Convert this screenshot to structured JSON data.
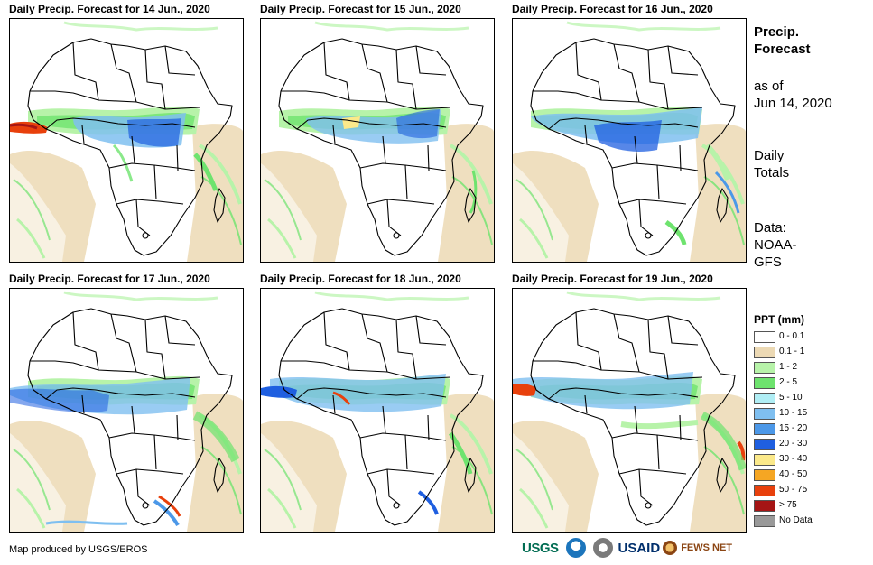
{
  "panels": [
    {
      "title": "Daily Precip. Forecast for 14 Jun., 2020"
    },
    {
      "title": "Daily Precip. Forecast for 15 Jun., 2020"
    },
    {
      "title": "Daily Precip. Forecast for 16 Jun., 2020"
    },
    {
      "title": "Daily Precip. Forecast for 17 Jun., 2020"
    },
    {
      "title": "Daily Precip. Forecast for 18 Jun., 2020"
    },
    {
      "title": "Daily Precip. Forecast for 19 Jun., 2020"
    }
  ],
  "side_info": {
    "heading_line1": "Precip.",
    "heading_line2": "Forecast",
    "asof_line1": "as of",
    "asof_line2": "Jun 14, 2020",
    "totals_line1": "Daily",
    "totals_line2": "Totals",
    "data_line1": "Data:",
    "data_line2": "NOAA-",
    "data_line3": "GFS"
  },
  "legend": {
    "title": "PPT (mm)",
    "items": [
      {
        "label": "0 - 0.1",
        "color": "#ffffff"
      },
      {
        "label": "0.1 - 1",
        "color": "#ecd9b4"
      },
      {
        "label": "1 - 2",
        "color": "#b7f3a9"
      },
      {
        "label": "2 - 5",
        "color": "#6ee36e"
      },
      {
        "label": "5 - 10",
        "color": "#b0eef5"
      },
      {
        "label": "10 - 15",
        "color": "#7fbff0"
      },
      {
        "label": "15 - 20",
        "color": "#4c98e8"
      },
      {
        "label": "20 - 30",
        "color": "#1f5fe0"
      },
      {
        "label": "30 - 40",
        "color": "#fbe98a"
      },
      {
        "label": "40 - 50",
        "color": "#f5a623"
      },
      {
        "label": "50 - 75",
        "color": "#e8400c"
      },
      {
        "label": "> 75",
        "color": "#a51515"
      },
      {
        "label": "No Data",
        "color": "#999999"
      }
    ]
  },
  "footer": {
    "credit": "Map produced by USGS/EROS",
    "logos": {
      "usgs": "USGS",
      "usaid": "USAID",
      "fews": "FEWS NET"
    }
  }
}
